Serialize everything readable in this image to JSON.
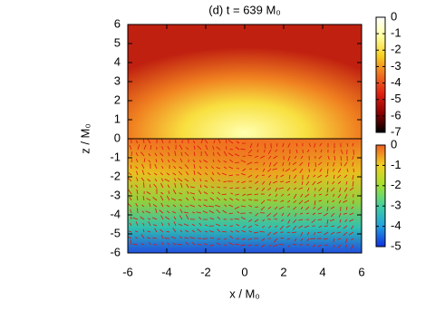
{
  "chart_data": {
    "type": "heatmap",
    "title": "(d) t = 639 M₀",
    "xlabel": "x / M₀",
    "ylabel": "z / M₀",
    "xlim": [
      -6,
      6
    ],
    "xticks": [
      -6,
      -4,
      -2,
      0,
      2,
      4,
      6
    ],
    "ylim": [
      -6,
      6
    ],
    "yticks": [
      -6,
      -5,
      -4,
      -3,
      -2,
      -1,
      0,
      1,
      2,
      3,
      4,
      5,
      6
    ],
    "colorbars": [
      {
        "ylim": [
          -7,
          0
        ],
        "yticks": [
          0,
          -1,
          -2,
          -3,
          -4,
          -5,
          -6,
          -7
        ],
        "colors": [
          "#000000",
          "#8b0000",
          "#e02010",
          "#f07020",
          "#f8d020",
          "#ffffa0",
          "#ffffff"
        ]
      },
      {
        "ylim": [
          -5,
          0
        ],
        "yticks": [
          0,
          -1,
          -2,
          -3,
          -4,
          -5
        ],
        "colors": [
          "#1030e0",
          "#20a0e0",
          "#40d0a0",
          "#a0e030",
          "#f0d020",
          "#f06020"
        ]
      }
    ]
  }
}
